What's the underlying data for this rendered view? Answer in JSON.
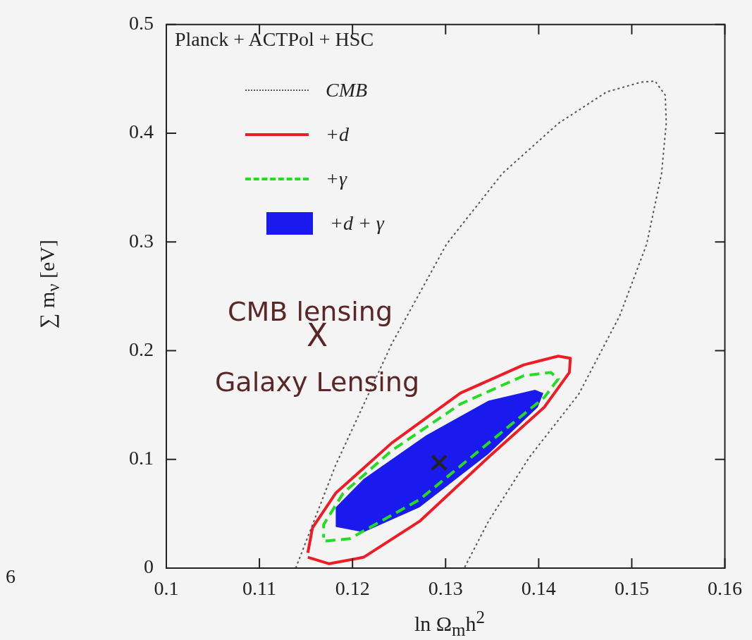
{
  "chart_data": {
    "type": "line",
    "xlabel": "ln Ω$_{m}$h$^{2}$",
    "ylabel": "∑ m$_{ν}$ [eV]",
    "legend_title": "Planck + ACTPol + HSC",
    "legend": "top left",
    "xlim": [
      0.1,
      0.16
    ],
    "xticks": [
      0.1,
      0.11,
      0.12,
      0.13,
      0.14,
      0.15,
      0.16
    ],
    "ylim": [
      0,
      0.5
    ],
    "yticks": [
      0,
      0.1,
      0.2,
      0.3,
      0.4,
      0.5
    ],
    "series": [
      {
        "type": "scatter",
        "marker": "cross",
        "color": "#222222",
        "x": [
          0.1293
        ],
        "values": [
          0.097
        ]
      },
      {
        "name": "CMB",
        "line_style": "dotted",
        "color": "#555555",
        "x": [
          0.1139,
          0.1182,
          0.1242,
          0.1301,
          0.1361,
          0.1421,
          0.1473,
          0.151,
          0.1525,
          0.1536,
          0.1537,
          0.1532,
          0.1516,
          0.1487,
          0.1443,
          0.139,
          0.1346,
          0.132
        ],
        "values": [
          0,
          0.095,
          0.206,
          0.298,
          0.363,
          0.409,
          0.438,
          0.447,
          0.448,
          0.435,
          0.409,
          0.363,
          0.298,
          0.232,
          0.16,
          0.102,
          0.043,
          0
        ]
      },
      {
        "name": "+d",
        "line_style": "solid",
        "color": "#ee1c25",
        "x": [
          0.1152,
          0.1175,
          0.1212,
          0.1272,
          0.1346,
          0.1406,
          0.1433,
          0.1434,
          0.1421,
          0.1384,
          0.1316,
          0.1242,
          0.1182,
          0.1157,
          0.1152
        ],
        "values": [
          0.01,
          0.004,
          0.01,
          0.043,
          0.102,
          0.148,
          0.18,
          0.193,
          0.195,
          0.187,
          0.161,
          0.115,
          0.069,
          0.037,
          0.014
        ]
      },
      {
        "name": "+γ",
        "line_style": "dashed",
        "color": "#22dd22",
        "x": [
          0.1171,
          0.1197,
          0.1272,
          0.1346,
          0.1406,
          0.1421,
          0.1413,
          0.1384,
          0.1316,
          0.1242,
          0.119,
          0.1169,
          0.1169
        ],
        "values": [
          0.025,
          0.027,
          0.063,
          0.115,
          0.157,
          0.174,
          0.18,
          0.177,
          0.151,
          0.108,
          0.069,
          0.04,
          0.028
        ]
      },
      {
        "name": "+d + γ",
        "type": "area",
        "color": "#1a1aee",
        "x": [
          0.1182,
          0.1212,
          0.1272,
          0.1346,
          0.1399,
          0.1405,
          0.1396,
          0.1346,
          0.1279,
          0.1212,
          0.1182,
          0.1182
        ],
        "values": [
          0.038,
          0.033,
          0.056,
          0.105,
          0.148,
          0.161,
          0.164,
          0.154,
          0.122,
          0.082,
          0.056,
          0.038
        ]
      }
    ],
    "annotations": [
      "CMB lensing",
      "X",
      "Galaxy Lensing",
      "6"
    ]
  }
}
